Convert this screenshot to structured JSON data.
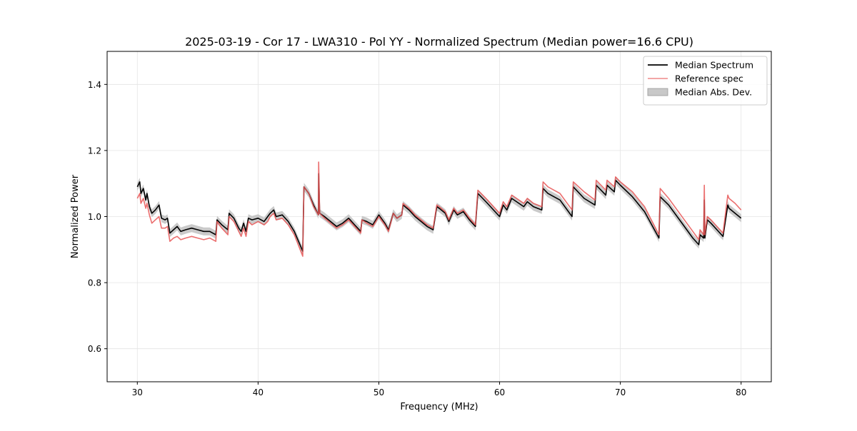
{
  "chart_data": {
    "type": "line",
    "title": "2025-03-19 - Cor 17 - LWA310 - Pol YY - Normalized Spectrum (Median power=16.6 CPU)",
    "xlabel": "Frequency (MHz)",
    "ylabel": "Normalized Power",
    "xlim": [
      27.5,
      82.5
    ],
    "ylim": [
      0.5,
      1.5
    ],
    "xticks": [
      30,
      40,
      50,
      60,
      70,
      80
    ],
    "yticks": [
      0.6,
      0.8,
      1.0,
      1.2,
      1.4
    ],
    "xtick_labels": [
      "30",
      "40",
      "50",
      "60",
      "70",
      "80"
    ],
    "ytick_labels": [
      "0.6",
      "0.8",
      "1.0",
      "1.2",
      "1.4"
    ],
    "grid": true,
    "legend_position": "top-right",
    "legend": [
      {
        "label": "Median Spectrum",
        "kind": "line",
        "color": "#000000"
      },
      {
        "label": "Reference spec",
        "kind": "line",
        "color": "#e8555599"
      },
      {
        "label": "Median Abs. Dev.",
        "kind": "patch",
        "color": "#c8c8c8"
      }
    ],
    "mad_halfwidth": 0.012,
    "series": [
      {
        "name": "Median Spectrum",
        "color": "#000000",
        "x": [
          30.0,
          30.2,
          30.3,
          30.5,
          30.7,
          30.8,
          31.0,
          31.2,
          31.5,
          31.8,
          32.0,
          32.3,
          32.5,
          32.7,
          33.0,
          33.3,
          33.6,
          34.0,
          34.5,
          35.0,
          35.5,
          36.0,
          36.5,
          36.6,
          37.0,
          37.5,
          37.6,
          38.0,
          38.4,
          38.6,
          38.8,
          39.0,
          39.2,
          39.5,
          40.0,
          40.5,
          40.8,
          41.0,
          41.3,
          41.5,
          42.0,
          42.5,
          43.0,
          43.7,
          43.8,
          44.2,
          44.6,
          45.0,
          45.02,
          45.1,
          45.5,
          46.0,
          46.5,
          47.0,
          47.5,
          48.0,
          48.5,
          48.6,
          49.0,
          49.5,
          50.0,
          50.5,
          50.8,
          51.2,
          51.5,
          51.9,
          52.0,
          52.5,
          53.0,
          53.5,
          54.0,
          54.5,
          54.8,
          55.0,
          55.5,
          55.8,
          56.2,
          56.5,
          57.0,
          57.5,
          58.0,
          58.2,
          58.6,
          59.0,
          60.0,
          60.3,
          60.6,
          61.0,
          62.0,
          62.3,
          62.8,
          63.5,
          63.6,
          64.0,
          65.0,
          66.0,
          66.1,
          67.0,
          67.9,
          68.0,
          68.8,
          68.9,
          69.5,
          69.6,
          70.0,
          71.0,
          72.0,
          73.2,
          73.3,
          74.0,
          75.0,
          76.0,
          76.5,
          76.6,
          76.9,
          76.95,
          77.0,
          77.2,
          77.5,
          78.0,
          78.5,
          78.9,
          79.0,
          79.5,
          80.0
        ],
        "y": [
          1.09,
          1.105,
          1.07,
          1.085,
          1.05,
          1.07,
          1.03,
          1.01,
          1.02,
          1.035,
          0.995,
          0.99,
          0.995,
          0.95,
          0.96,
          0.97,
          0.955,
          0.96,
          0.965,
          0.96,
          0.955,
          0.955,
          0.945,
          0.99,
          0.975,
          0.96,
          1.01,
          0.995,
          0.965,
          0.955,
          0.98,
          0.955,
          0.995,
          0.99,
          0.995,
          0.985,
          1.0,
          1.01,
          1.02,
          1.0,
          1.005,
          0.985,
          0.955,
          0.895,
          1.09,
          1.07,
          1.035,
          1.005,
          1.13,
          1.01,
          1.0,
          0.985,
          0.97,
          0.98,
          0.995,
          0.975,
          0.955,
          0.99,
          0.985,
          0.975,
          1.005,
          0.98,
          0.96,
          1.01,
          0.995,
          1.005,
          1.035,
          1.02,
          1.0,
          0.985,
          0.97,
          0.96,
          1.03,
          1.025,
          1.01,
          0.985,
          1.02,
          1.005,
          1.015,
          0.99,
          0.97,
          1.07,
          1.055,
          1.04,
          1.0,
          1.035,
          1.02,
          1.055,
          1.03,
          1.045,
          1.03,
          1.02,
          1.085,
          1.07,
          1.05,
          1.0,
          1.09,
          1.055,
          1.035,
          1.095,
          1.065,
          1.095,
          1.075,
          1.11,
          1.095,
          1.06,
          1.015,
          0.935,
          1.06,
          1.035,
          0.985,
          0.935,
          0.915,
          0.945,
          0.935,
          1.05,
          0.935,
          0.99,
          0.98,
          0.96,
          0.94,
          1.035,
          1.025,
          1.01,
          0.995
        ]
      },
      {
        "name": "Reference spec",
        "color": "#e85555",
        "x": [
          30.0,
          30.2,
          30.3,
          30.5,
          30.7,
          30.8,
          31.0,
          31.2,
          31.5,
          31.8,
          32.0,
          32.3,
          32.5,
          32.7,
          33.0,
          33.3,
          33.6,
          34.0,
          34.5,
          35.0,
          35.5,
          36.0,
          36.5,
          36.6,
          37.0,
          37.5,
          37.6,
          38.0,
          38.4,
          38.6,
          38.8,
          39.0,
          39.2,
          39.5,
          40.0,
          40.5,
          40.8,
          41.0,
          41.3,
          41.5,
          42.0,
          42.5,
          43.0,
          43.7,
          43.8,
          44.2,
          44.6,
          45.0,
          45.02,
          45.1,
          45.5,
          46.0,
          46.5,
          47.0,
          47.5,
          48.0,
          48.5,
          48.6,
          49.0,
          49.5,
          50.0,
          50.5,
          50.8,
          51.2,
          51.5,
          51.9,
          52.0,
          52.5,
          53.0,
          53.5,
          54.0,
          54.5,
          54.8,
          55.0,
          55.5,
          55.8,
          56.2,
          56.5,
          57.0,
          57.5,
          58.0,
          58.2,
          58.6,
          59.0,
          60.0,
          60.3,
          60.6,
          61.0,
          62.0,
          62.3,
          62.8,
          63.5,
          63.6,
          64.0,
          65.0,
          66.0,
          66.1,
          67.0,
          67.9,
          68.0,
          68.8,
          68.9,
          69.5,
          69.6,
          70.0,
          71.0,
          72.0,
          73.2,
          73.3,
          74.0,
          75.0,
          76.0,
          76.5,
          76.6,
          76.9,
          76.95,
          77.0,
          77.2,
          77.5,
          78.0,
          78.5,
          78.9,
          79.0,
          79.5,
          80.0
        ],
        "y": [
          1.055,
          1.07,
          1.04,
          1.055,
          1.025,
          1.04,
          1.005,
          0.98,
          0.99,
          1.0,
          0.965,
          0.965,
          0.97,
          0.925,
          0.935,
          0.94,
          0.93,
          0.935,
          0.94,
          0.935,
          0.93,
          0.935,
          0.925,
          0.985,
          0.965,
          0.945,
          1.0,
          0.985,
          0.955,
          0.94,
          0.965,
          0.94,
          0.985,
          0.975,
          0.985,
          0.975,
          0.985,
          1.0,
          1.01,
          0.99,
          0.995,
          0.975,
          0.945,
          0.88,
          1.09,
          1.07,
          1.03,
          1.005,
          1.165,
          1.01,
          0.995,
          0.98,
          0.965,
          0.975,
          0.99,
          0.97,
          0.95,
          0.99,
          0.98,
          0.97,
          1.0,
          0.975,
          0.955,
          1.01,
          0.995,
          1.005,
          1.04,
          1.025,
          1.005,
          0.99,
          0.975,
          0.965,
          1.035,
          1.03,
          1.015,
          0.99,
          1.025,
          1.01,
          1.02,
          0.995,
          0.975,
          1.08,
          1.065,
          1.05,
          1.01,
          1.045,
          1.03,
          1.065,
          1.04,
          1.055,
          1.04,
          1.03,
          1.105,
          1.09,
          1.07,
          1.02,
          1.105,
          1.075,
          1.05,
          1.11,
          1.08,
          1.11,
          1.09,
          1.12,
          1.105,
          1.075,
          1.03,
          0.945,
          1.085,
          1.055,
          1.005,
          0.955,
          0.93,
          0.96,
          0.945,
          1.095,
          0.945,
          1.0,
          0.99,
          0.97,
          0.95,
          1.065,
          1.055,
          1.04,
          1.02
        ]
      }
    ]
  }
}
